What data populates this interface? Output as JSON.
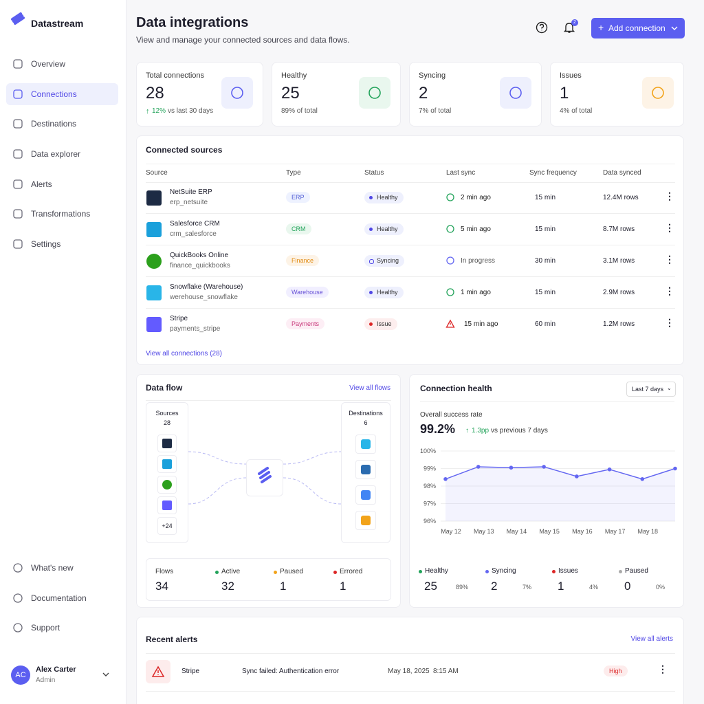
{
  "sidebar": {
    "brand": "Datastream",
    "nav": [
      "Overview",
      "Connections",
      "Destinations",
      "Data explorer",
      "Alerts",
      "Transformations",
      "Settings"
    ],
    "footer_nav": [
      "What's new",
      "Documentation",
      "Support"
    ],
    "user": {
      "initials": "AC",
      "name": "Alex Carter",
      "role": "Admin"
    }
  },
  "header": {
    "title": "Data integrations",
    "subtitle": "View and manage your connected sources and data flows.",
    "notifications": "2",
    "button": "Add connection"
  },
  "stats": [
    {
      "label": "Total connections",
      "value": "28",
      "change": "12%",
      "note": "vs last 30 days"
    },
    {
      "label": "Healthy",
      "value": "25",
      "note": "89% of total"
    },
    {
      "label": "Syncing",
      "value": "2",
      "note": "7% of total"
    },
    {
      "label": "Issues",
      "value": "1",
      "note": "4% of total"
    }
  ],
  "sources": {
    "title": "Connected sources",
    "columns": [
      "Source",
      "Type",
      "Status",
      "Last sync",
      "Sync frequency",
      "Data synced"
    ],
    "rows": [
      {
        "name": "NetSuite ERP",
        "id": "erp_netsuite",
        "type": "ERP",
        "status": "Healthy",
        "last_sync": "2 min ago",
        "frequency": "15 min",
        "data_synced": "12.4M rows"
      },
      {
        "name": "Salesforce CRM",
        "id": "crm_salesforce",
        "type": "CRM",
        "status": "Healthy",
        "last_sync": "5 min ago",
        "frequency": "15 min",
        "data_synced": "8.7M rows"
      },
      {
        "name": "QuickBooks Online",
        "id": "finance_quickbooks",
        "type": "Finance",
        "status": "Syncing",
        "last_sync": "In progress",
        "frequency": "30 min",
        "data_synced": "3.1M rows"
      },
      {
        "name": "Snowflake (Warehouse)",
        "id": "werehouse_snowflake",
        "type": "Warehouse",
        "status": "Healthy",
        "last_sync": "1 min ago",
        "frequency": "15 min",
        "data_synced": "2.9M rows"
      },
      {
        "name": "Stripe",
        "id": "payments_stripe",
        "type": "Payments",
        "status": "Issue",
        "last_sync": "15 min ago",
        "frequency": "60 min",
        "data_synced": "1.2M rows"
      }
    ],
    "link": "View all connections (28)"
  },
  "data_flow": {
    "title": "Data flow",
    "link": "View all flows",
    "sources_label": "Sources",
    "sources_count": "28",
    "more": "+24",
    "destinations_label": "Destinations",
    "destinations_count": "6",
    "stats": [
      {
        "label": "Flows",
        "value": "34"
      },
      {
        "label": "Active",
        "value": "32"
      },
      {
        "label": "Paused",
        "value": "1"
      },
      {
        "label": "Errored",
        "value": "1"
      }
    ]
  },
  "health": {
    "title": "Connection health",
    "range": "Last 7 days",
    "metric_label": "Overall success rate",
    "metric": "99.2%",
    "change": "1.3pp",
    "change_note": "vs previous 7 days",
    "chart_data": {
      "type": "line",
      "categories": [
        "May 12",
        "May 13",
        "May 14",
        "May 15",
        "May 16",
        "May 17",
        "May 18",
        null
      ],
      "series": [
        {
          "name": "Success rate",
          "color": "#6366f1",
          "values": [
            98.4,
            99.1,
            99.05,
            99.1,
            98.55,
            98.95,
            98.4,
            99.0
          ]
        }
      ],
      "ylim": [
        96,
        100
      ],
      "yticks": [
        {
          "value": 96,
          "label": "96%"
        },
        {
          "value": 97,
          "label": "97%"
        },
        {
          "value": 98,
          "label": "98%"
        },
        {
          "value": 99,
          "label": "99%"
        },
        {
          "value": 100,
          "label": "100%"
        }
      ],
      "grid": true
    },
    "legend": [
      {
        "label": "Healthy",
        "value": "25",
        "share": "89%"
      },
      {
        "label": "Syncing",
        "value": "2",
        "share": "7%"
      },
      {
        "label": "Issues",
        "value": "1",
        "share": "4%"
      },
      {
        "label": "Paused",
        "value": "0",
        "share": "0%"
      }
    ]
  },
  "alerts": {
    "title": "Recent alerts",
    "link": "View all alerts",
    "rows": [
      {
        "source": "Stripe",
        "message": "Sync failed: Authentication error",
        "date": "May 18, 2025",
        "time": "8:15 AM",
        "severity": "High"
      }
    ]
  }
}
